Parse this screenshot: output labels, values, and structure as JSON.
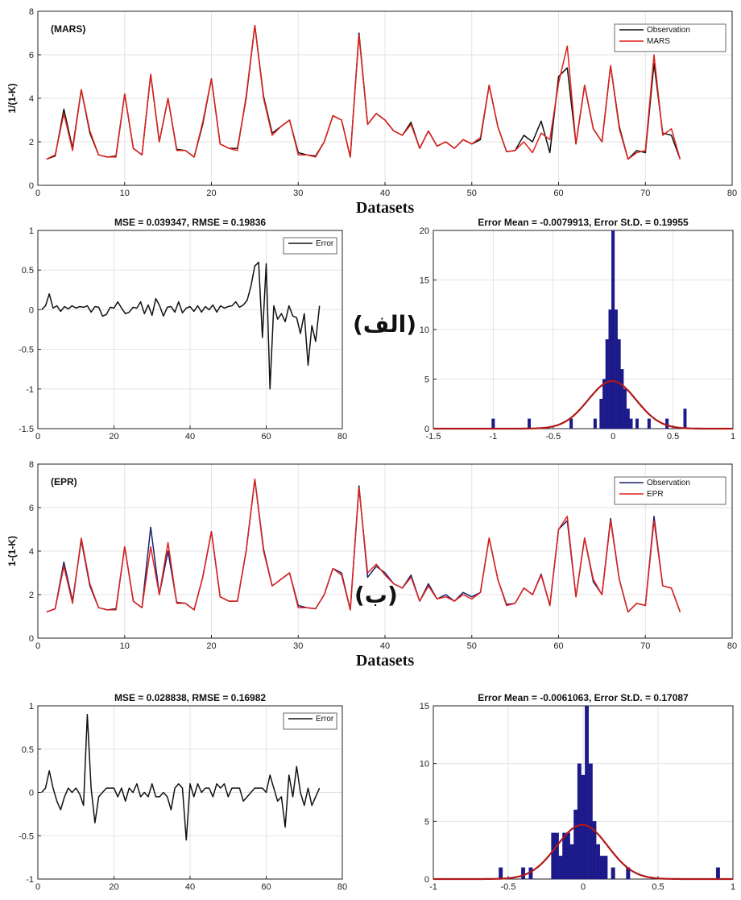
{
  "colors": {
    "observation_mars": "#111111",
    "observation_epr": "#1a1f6b",
    "model": "#e0201b",
    "error": "#111111",
    "hist_bar": "#1c1a8a",
    "normal_fit": "#b01818",
    "grid": "#e3e3e3"
  },
  "labels": {
    "panel_a": "(الف)",
    "panel_b": "(ب)"
  },
  "chart_data": [
    {
      "id": "mars-series",
      "type": "line",
      "tag": "(MARS)",
      "xlabel": "Datasets",
      "ylabel": "1/(1-K)",
      "xlim": [
        0,
        80
      ],
      "ylim": [
        0,
        8
      ],
      "xticks": [
        0,
        10,
        20,
        30,
        40,
        50,
        60,
        70,
        80
      ],
      "yticks": [
        0,
        2,
        4,
        6,
        8
      ],
      "grid": true,
      "legend": "top-right",
      "x": [
        1,
        2,
        3,
        4,
        5,
        6,
        7,
        8,
        9,
        10,
        11,
        12,
        13,
        14,
        15,
        16,
        17,
        18,
        19,
        20,
        21,
        22,
        23,
        24,
        25,
        26,
        27,
        28,
        29,
        30,
        31,
        32,
        33,
        34,
        35,
        36,
        37,
        38,
        39,
        40,
        41,
        42,
        43,
        44,
        45,
        46,
        47,
        48,
        49,
        50,
        51,
        52,
        53,
        54,
        55,
        56,
        57,
        58,
        59,
        60,
        61,
        62,
        63,
        64,
        65,
        66,
        67,
        68,
        69,
        70,
        71,
        72,
        73,
        74
      ],
      "series": [
        {
          "name": "Observation",
          "values": [
            1.2,
            1.35,
            3.5,
            1.7,
            4.4,
            2.4,
            1.4,
            1.3,
            1.35,
            4.2,
            1.7,
            1.4,
            5.1,
            2.0,
            4.0,
            1.65,
            1.6,
            1.3,
            2.8,
            4.9,
            1.9,
            1.7,
            1.7,
            4.0,
            7.35,
            4.1,
            2.4,
            2.7,
            3.0,
            1.5,
            1.4,
            1.35,
            2.0,
            3.2,
            3.0,
            1.3,
            7.0,
            2.8,
            3.3,
            3.0,
            2.5,
            2.3,
            2.9,
            1.7,
            2.5,
            1.8,
            2.0,
            1.7,
            2.1,
            1.9,
            2.1,
            4.6,
            2.7,
            1.55,
            1.6,
            2.3,
            2.0,
            2.95,
            1.5,
            5.0,
            5.4,
            1.9,
            4.6,
            2.6,
            2.0,
            5.5,
            2.7,
            1.2,
            1.6,
            1.5,
            5.6,
            2.4,
            2.3,
            1.2
          ]
        },
        {
          "name": "MARS",
          "values": [
            1.2,
            1.4,
            3.3,
            1.6,
            4.4,
            2.5,
            1.4,
            1.3,
            1.3,
            4.2,
            1.7,
            1.4,
            5.1,
            2.0,
            4.0,
            1.6,
            1.6,
            1.3,
            2.9,
            4.9,
            1.9,
            1.7,
            1.6,
            4.1,
            7.35,
            4.0,
            2.3,
            2.7,
            3.0,
            1.4,
            1.4,
            1.3,
            2.0,
            3.2,
            3.0,
            1.3,
            6.9,
            2.8,
            3.3,
            3.0,
            2.5,
            2.3,
            2.8,
            1.7,
            2.5,
            1.8,
            2.0,
            1.7,
            2.1,
            1.9,
            2.2,
            4.6,
            2.7,
            1.55,
            1.6,
            2.0,
            1.5,
            2.4,
            2.1,
            4.7,
            6.4,
            1.9,
            4.6,
            2.6,
            2.0,
            5.5,
            2.6,
            1.2,
            1.5,
            1.6,
            6.0,
            2.3,
            2.6,
            1.2
          ]
        }
      ]
    },
    {
      "id": "mars-error",
      "type": "line",
      "title": "MSE = 0.039347, RMSE = 0.19836",
      "xlim": [
        0,
        80
      ],
      "ylim": [
        -1.5,
        1
      ],
      "xticks": [
        0,
        20,
        40,
        60,
        80
      ],
      "yticks": [
        -1.5,
        -1,
        -0.5,
        0,
        0.5,
        1
      ],
      "grid": true,
      "legend": "top-right",
      "x": [
        1,
        2,
        3,
        4,
        5,
        6,
        7,
        8,
        9,
        10,
        11,
        12,
        13,
        14,
        15,
        16,
        17,
        18,
        19,
        20,
        21,
        22,
        23,
        24,
        25,
        26,
        27,
        28,
        29,
        30,
        31,
        32,
        33,
        34,
        35,
        36,
        37,
        38,
        39,
        40,
        41,
        42,
        43,
        44,
        45,
        46,
        47,
        48,
        49,
        50,
        51,
        52,
        53,
        54,
        55,
        56,
        57,
        58,
        59,
        60,
        61,
        62,
        63,
        64,
        65,
        66,
        67,
        68,
        69,
        70,
        71,
        72,
        73,
        74
      ],
      "series": [
        {
          "name": "Error",
          "values": [
            0,
            0.05,
            0.2,
            0.02,
            0.05,
            -0.02,
            0.04,
            0.01,
            0.05,
            0.02,
            0.04,
            0.03,
            0.05,
            -0.03,
            0.04,
            0.03,
            -0.08,
            -0.06,
            0.03,
            0.02,
            0.1,
            0.02,
            -0.05,
            -0.03,
            0.03,
            0.02,
            0.1,
            -0.05,
            0.06,
            -0.07,
            0.14,
            0.05,
            -0.08,
            0.03,
            0.04,
            -0.03,
            0.1,
            -0.04,
            0.02,
            0.04,
            -0.02,
            0.05,
            -0.03,
            0.04,
            0,
            0.06,
            -0.03,
            0.05,
            0.02,
            0.04,
            0.05,
            0.1,
            0.03,
            0.06,
            0.12,
            0.3,
            0.55,
            0.6,
            -0.35,
            0.58,
            -1.0,
            0.05,
            -0.12,
            -0.05,
            -0.15,
            0.05,
            -0.08,
            -0.1,
            -0.3,
            -0.05,
            -0.7,
            -0.2,
            -0.4,
            0.05
          ]
        }
      ]
    },
    {
      "id": "mars-hist",
      "type": "bar",
      "title": "Error Mean = -0.0079913, Error St.D. = 0.19955",
      "xlim": [
        -1.5,
        1
      ],
      "ylim": [
        0,
        20
      ],
      "xticks": [
        -1.5,
        -1,
        -0.5,
        0,
        0.5,
        1
      ],
      "yticks": [
        0,
        5,
        10,
        15,
        20
      ],
      "grid": true,
      "bin_width": 0.025,
      "bins": [
        [
          -1.0,
          1
        ],
        [
          -0.7,
          1
        ],
        [
          -0.35,
          1
        ],
        [
          -0.15,
          1
        ],
        [
          -0.1,
          3
        ],
        [
          -0.075,
          5
        ],
        [
          -0.05,
          9
        ],
        [
          -0.025,
          12
        ],
        [
          0.0,
          20
        ],
        [
          0.025,
          12
        ],
        [
          0.05,
          9
        ],
        [
          0.075,
          6
        ],
        [
          0.1,
          4
        ],
        [
          0.125,
          2
        ],
        [
          0.15,
          1
        ],
        [
          0.2,
          1
        ],
        [
          0.3,
          1
        ],
        [
          0.45,
          1
        ],
        [
          0.6,
          2
        ]
      ],
      "fit_peak": 4.8
    },
    {
      "id": "epr-series",
      "type": "line",
      "tag": "(EPR)",
      "xlabel": "Datasets",
      "ylabel": "1-(1-K)",
      "xlim": [
        0,
        80
      ],
      "ylim": [
        0,
        8
      ],
      "xticks": [
        0,
        10,
        20,
        30,
        40,
        50,
        60,
        70,
        80
      ],
      "yticks": [
        0,
        2,
        4,
        6,
        8
      ],
      "grid": true,
      "legend": "top-right",
      "x": [
        1,
        2,
        3,
        4,
        5,
        6,
        7,
        8,
        9,
        10,
        11,
        12,
        13,
        14,
        15,
        16,
        17,
        18,
        19,
        20,
        21,
        22,
        23,
        24,
        25,
        26,
        27,
        28,
        29,
        30,
        31,
        32,
        33,
        34,
        35,
        36,
        37,
        38,
        39,
        40,
        41,
        42,
        43,
        44,
        45,
        46,
        47,
        48,
        49,
        50,
        51,
        52,
        53,
        54,
        55,
        56,
        57,
        58,
        59,
        60,
        61,
        62,
        63,
        64,
        65,
        66,
        67,
        68,
        69,
        70,
        71,
        72,
        73,
        74
      ],
      "series": [
        {
          "name": "Observation",
          "values": [
            1.2,
            1.35,
            3.5,
            1.7,
            4.5,
            2.4,
            1.4,
            1.3,
            1.35,
            4.2,
            1.7,
            1.4,
            5.1,
            2.0,
            4.0,
            1.65,
            1.6,
            1.3,
            2.8,
            4.9,
            1.9,
            1.7,
            1.7,
            4.0,
            7.3,
            4.1,
            2.4,
            2.7,
            3.0,
            1.5,
            1.4,
            1.35,
            2.0,
            3.2,
            3.0,
            1.3,
            7.0,
            2.8,
            3.3,
            3.0,
            2.5,
            2.3,
            2.9,
            1.7,
            2.5,
            1.8,
            2.0,
            1.7,
            2.1,
            1.9,
            2.1,
            4.6,
            2.7,
            1.55,
            1.6,
            2.3,
            2.0,
            2.95,
            1.5,
            5.0,
            5.4,
            1.9,
            4.6,
            2.6,
            2.0,
            5.5,
            2.7,
            1.2,
            1.6,
            1.5,
            5.6,
            2.4,
            2.3,
            1.2
          ]
        },
        {
          "name": "EPR",
          "values": [
            1.2,
            1.35,
            3.3,
            1.6,
            4.6,
            2.5,
            1.4,
            1.3,
            1.3,
            4.2,
            1.7,
            1.4,
            4.2,
            2.0,
            4.4,
            1.6,
            1.6,
            1.3,
            2.8,
            4.9,
            1.9,
            1.7,
            1.7,
            4.0,
            7.3,
            4.0,
            2.4,
            2.7,
            3.0,
            1.4,
            1.4,
            1.35,
            2.0,
            3.2,
            2.9,
            1.3,
            6.9,
            3.0,
            3.4,
            2.9,
            2.5,
            2.3,
            2.8,
            1.7,
            2.4,
            1.8,
            1.9,
            1.7,
            2.0,
            1.8,
            2.1,
            4.6,
            2.7,
            1.5,
            1.6,
            2.3,
            2.0,
            2.9,
            1.5,
            5.0,
            5.6,
            1.9,
            4.6,
            2.7,
            2.0,
            5.4,
            2.7,
            1.2,
            1.6,
            1.5,
            5.4,
            2.4,
            2.3,
            1.2
          ]
        }
      ]
    },
    {
      "id": "epr-error",
      "type": "line",
      "title": "MSE = 0.028838, RMSE = 0.16982",
      "xlim": [
        0,
        80
      ],
      "ylim": [
        -1,
        1
      ],
      "xticks": [
        0,
        20,
        40,
        60,
        80
      ],
      "yticks": [
        -1,
        -0.5,
        0,
        0.5,
        1
      ],
      "grid": true,
      "legend": "top-right",
      "x": [
        1,
        2,
        3,
        4,
        5,
        6,
        7,
        8,
        9,
        10,
        11,
        12,
        13,
        14,
        15,
        16,
        17,
        18,
        19,
        20,
        21,
        22,
        23,
        24,
        25,
        26,
        27,
        28,
        29,
        30,
        31,
        32,
        33,
        34,
        35,
        36,
        37,
        38,
        39,
        40,
        41,
        42,
        43,
        44,
        45,
        46,
        47,
        48,
        49,
        50,
        51,
        52,
        53,
        54,
        55,
        56,
        57,
        58,
        59,
        60,
        61,
        62,
        63,
        64,
        65,
        66,
        67,
        68,
        69,
        70,
        71,
        72,
        73,
        74
      ],
      "series": [
        {
          "name": "Error",
          "values": [
            0,
            0.05,
            0.25,
            0.05,
            -0.1,
            -0.2,
            -0.05,
            0.05,
            0.0,
            0.05,
            -0.02,
            -0.15,
            0.9,
            0.05,
            -0.35,
            -0.05,
            0.0,
            0.05,
            0.05,
            0.05,
            -0.05,
            0.05,
            -0.1,
            0.05,
            0.0,
            0.1,
            -0.05,
            0.0,
            -0.05,
            0.1,
            -0.05,
            -0.05,
            0.0,
            -0.05,
            -0.2,
            0.05,
            0.1,
            0.05,
            -0.55,
            0.1,
            -0.05,
            0.1,
            0.0,
            0.05,
            0.05,
            -0.05,
            0.1,
            0.05,
            0.1,
            -0.05,
            0.05,
            0.05,
            0.05,
            -0.1,
            -0.05,
            0.0,
            0.05,
            0.05,
            0.05,
            0.0,
            0.2,
            0.05,
            -0.1,
            -0.05,
            -0.4,
            0.2,
            -0.05,
            0.3,
            0.0,
            -0.15,
            0.05,
            -0.15,
            -0.05,
            0.05
          ]
        }
      ]
    },
    {
      "id": "epr-hist",
      "type": "bar",
      "title": "Error Mean = -0.0061063, Error St.D. = 0.17087",
      "xlim": [
        -1,
        1
      ],
      "ylim": [
        0,
        15
      ],
      "xticks": [
        -1,
        -0.5,
        0,
        0.5,
        1
      ],
      "yticks": [
        0,
        5,
        10,
        15
      ],
      "grid": true,
      "bin_width": 0.025,
      "bins": [
        [
          -0.55,
          1
        ],
        [
          -0.4,
          1
        ],
        [
          -0.35,
          1
        ],
        [
          -0.2,
          4
        ],
        [
          -0.175,
          4
        ],
        [
          -0.15,
          2
        ],
        [
          -0.125,
          4
        ],
        [
          -0.1,
          4
        ],
        [
          -0.075,
          3
        ],
        [
          -0.05,
          6
        ],
        [
          -0.025,
          10
        ],
        [
          0.0,
          9
        ],
        [
          0.025,
          15
        ],
        [
          0.05,
          10
        ],
        [
          0.075,
          5
        ],
        [
          0.1,
          3
        ],
        [
          0.125,
          2
        ],
        [
          0.15,
          2
        ],
        [
          0.2,
          1
        ],
        [
          0.3,
          1
        ],
        [
          0.9,
          1
        ]
      ],
      "fit_peak": 4.7
    }
  ]
}
